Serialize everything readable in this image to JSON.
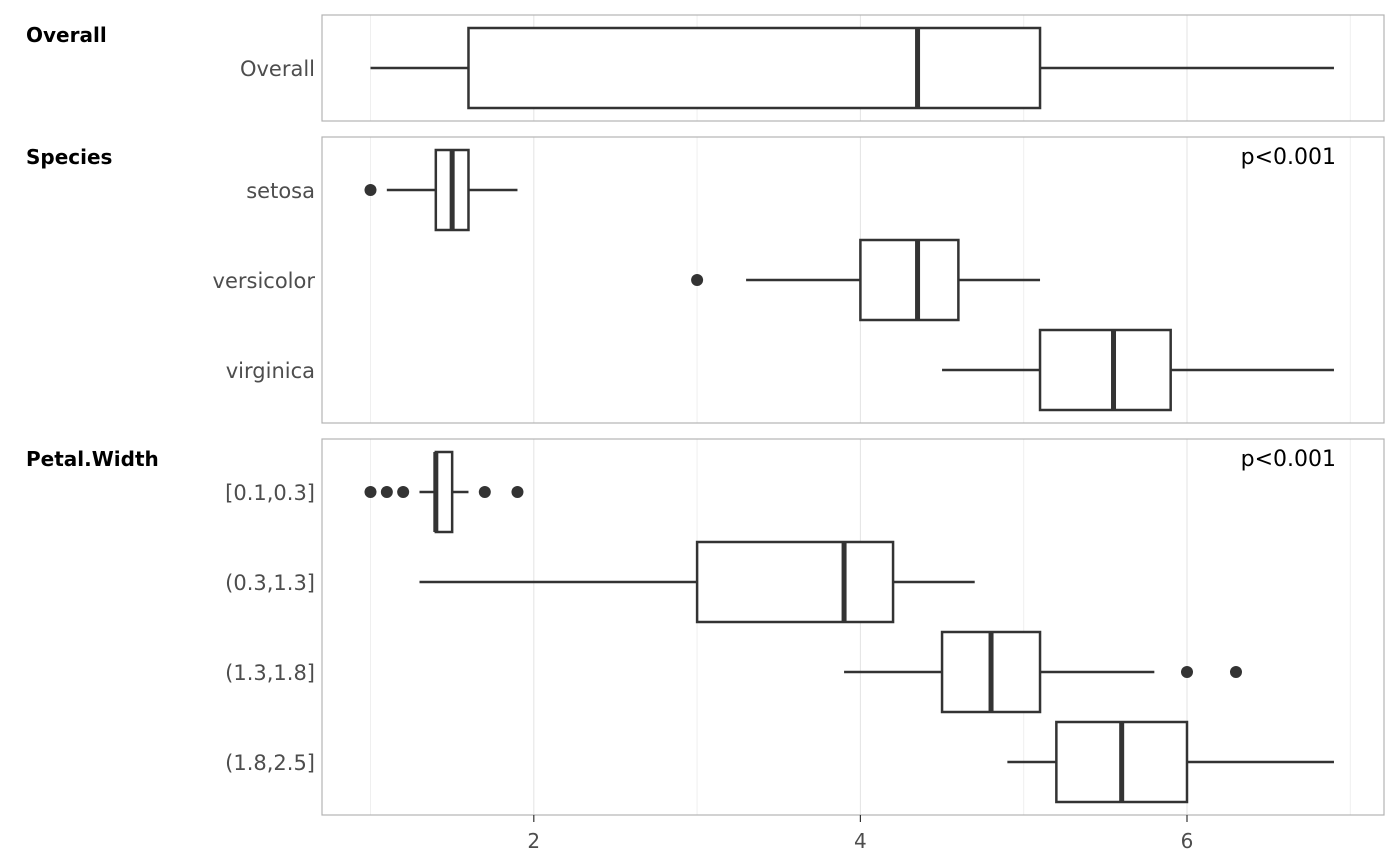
{
  "chart_data": {
    "type": "boxplot",
    "title": "",
    "xlabel": "",
    "xlim": [
      0.7,
      7.2
    ],
    "x_ticks": [
      2,
      4,
      6
    ],
    "x_tick_labels": [
      "2",
      "4",
      "6"
    ],
    "grid": true,
    "panels": [
      {
        "title": "Overall",
        "p_value": "",
        "groups": [
          {
            "label": "Overall",
            "min": 1.0,
            "q1": 1.6,
            "median": 4.35,
            "q3": 5.1,
            "max": 6.9,
            "outliers": []
          }
        ]
      },
      {
        "title": "Species",
        "p_value": "p<0.001",
        "groups": [
          {
            "label": "setosa",
            "min": 1.1,
            "q1": 1.4,
            "median": 1.5,
            "q3": 1.6,
            "max": 1.9,
            "outliers": [
              1.0
            ]
          },
          {
            "label": "versicolor",
            "min": 3.3,
            "q1": 4.0,
            "median": 4.35,
            "q3": 4.6,
            "max": 5.1,
            "outliers": [
              3.0
            ]
          },
          {
            "label": "virginica",
            "min": 4.5,
            "q1": 5.1,
            "median": 5.55,
            "q3": 5.9,
            "max": 6.9,
            "outliers": []
          }
        ]
      },
      {
        "title": "Petal.Width",
        "p_value": "p<0.001",
        "groups": [
          {
            "label": "[0.1,0.3]",
            "min": 1.3,
            "q1": 1.4,
            "median": 1.4,
            "q3": 1.5,
            "max": 1.6,
            "outliers": [
              1.0,
              1.1,
              1.2,
              1.7,
              1.9
            ]
          },
          {
            "label": "(0.3,1.3]",
            "min": 1.3,
            "q1": 3.0,
            "median": 3.9,
            "q3": 4.2,
            "max": 4.7,
            "outliers": []
          },
          {
            "label": "(1.3,1.8]",
            "min": 3.9,
            "q1": 4.5,
            "median": 4.8,
            "q3": 5.1,
            "max": 5.8,
            "outliers": [
              6.0,
              6.3
            ]
          },
          {
            "label": "(1.8,2.5]",
            "min": 4.9,
            "q1": 5.2,
            "median": 5.6,
            "q3": 6.0,
            "max": 6.9,
            "outliers": []
          }
        ]
      }
    ]
  }
}
